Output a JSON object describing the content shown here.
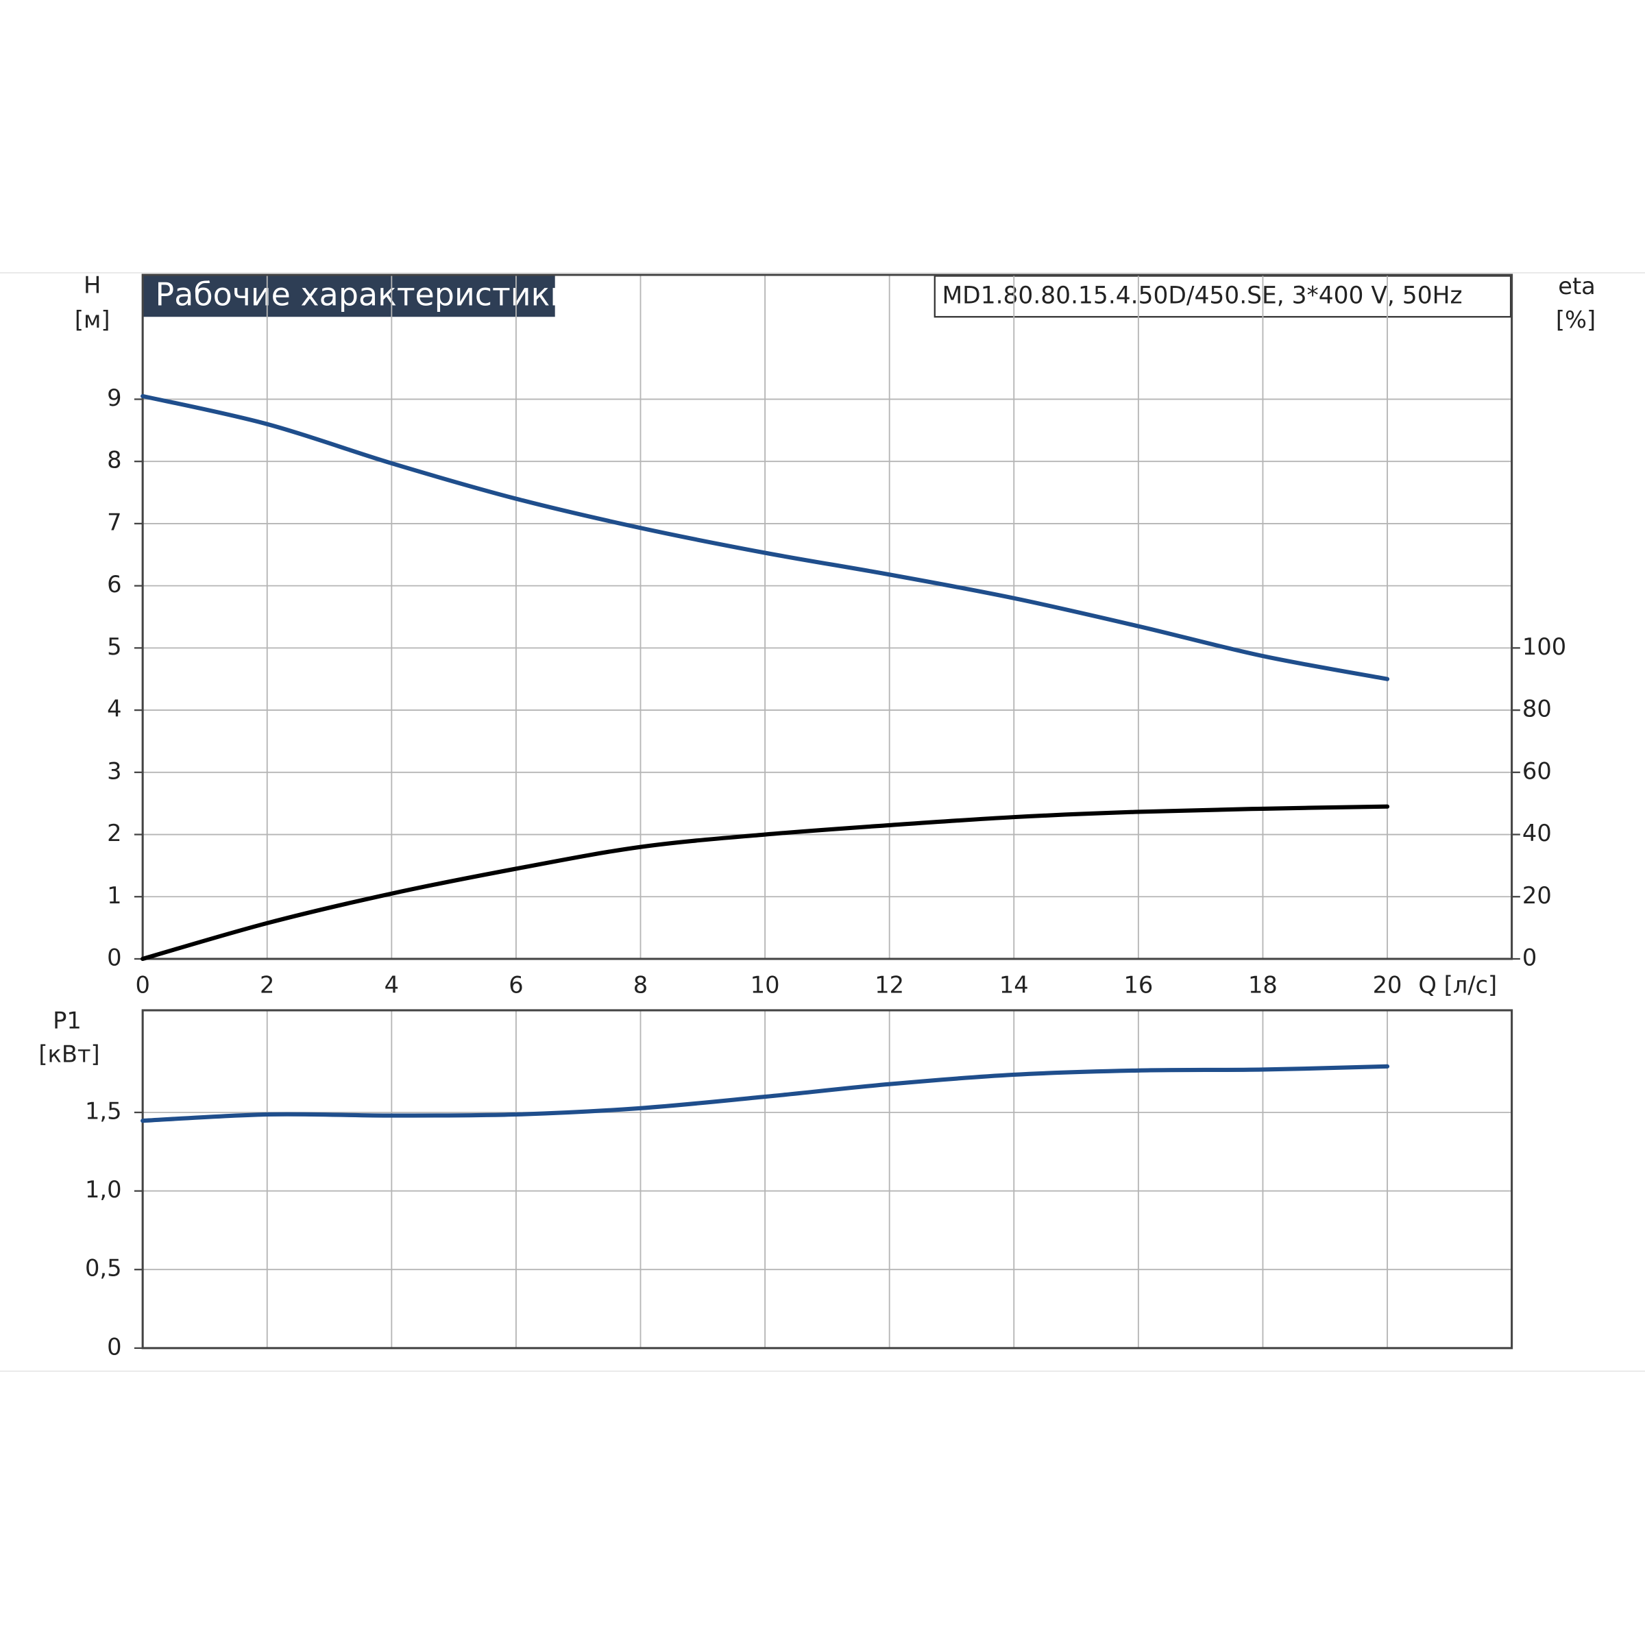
{
  "chart_data": [
    {
      "type": "line",
      "title": "Рабочие характеристики",
      "subtitle": "MD1.80.80.15.4.50D/450.SE, 3*400 V, 50Hz",
      "ylabel": "H",
      "yunit": "[м]",
      "y2label": "eta",
      "y2unit": "[%]",
      "xlabel": "Q [л/с]",
      "x": [
        0,
        2,
        4,
        6,
        8,
        10,
        12,
        14,
        16,
        18,
        20
      ],
      "series": [
        {
          "name": "H",
          "color": "#1f4e8c",
          "axis": "y",
          "values": [
            9.05,
            8.6,
            7.97,
            7.4,
            6.93,
            6.53,
            6.18,
            5.8,
            5.35,
            4.87,
            4.5
          ]
        },
        {
          "name": "eta",
          "color": "#000000",
          "axis": "y2",
          "values": [
            0,
            11.5,
            21,
            29,
            36,
            40,
            43,
            45.6,
            47.3,
            48.3,
            49
          ]
        }
      ],
      "xlim": [
        0,
        22
      ],
      "xticks": [
        0,
        2,
        4,
        6,
        8,
        10,
        12,
        14,
        16,
        18,
        20
      ],
      "ylim": [
        0,
        11
      ],
      "yticks": [
        0,
        1,
        2,
        3,
        4,
        5,
        6,
        7,
        8,
        9
      ],
      "y2lim": [
        0,
        220
      ],
      "y2ticks": [
        0,
        20,
        40,
        60,
        80,
        100
      ],
      "grid": true
    },
    {
      "type": "line",
      "ylabel": "P1",
      "yunit": "[кВт]",
      "x": [
        0,
        2,
        4,
        6,
        8,
        10,
        12,
        14,
        16,
        18,
        20
      ],
      "series": [
        {
          "name": "P1",
          "color": "#1f4e8c",
          "axis": "y",
          "values": [
            1.447,
            1.487,
            1.48,
            1.487,
            1.527,
            1.6,
            1.68,
            1.74,
            1.767,
            1.773,
            1.793
          ]
        }
      ],
      "xlim": [
        0,
        22
      ],
      "xticks": [
        0,
        2,
        4,
        6,
        8,
        10,
        12,
        14,
        16,
        18,
        20
      ],
      "ylim": [
        0,
        2.15
      ],
      "yticks": [
        0,
        {
          "value": 0.5,
          "label": "0,5"
        },
        {
          "value": 1,
          "label": "1,0"
        },
        {
          "value": 1.5,
          "label": "1,5"
        }
      ],
      "grid": true
    }
  ]
}
